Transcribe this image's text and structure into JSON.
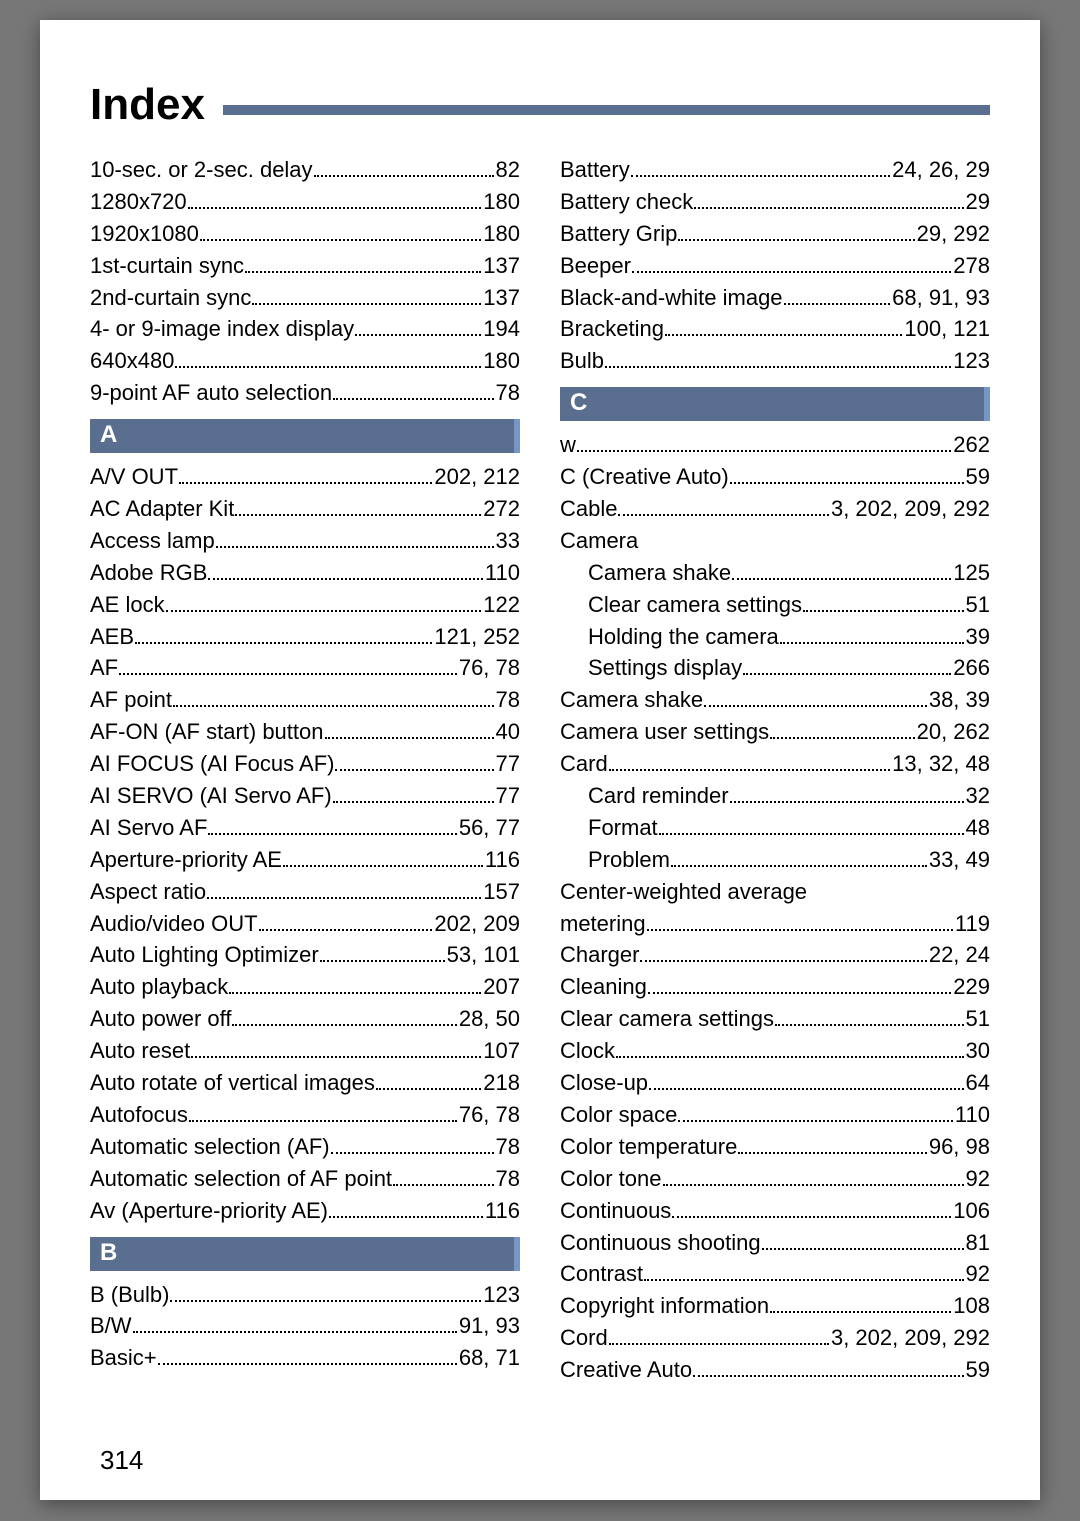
{
  "title": "Index",
  "page_number": "314",
  "colors": {
    "header_bg": "#5a6f8f",
    "header_accent": "#7896c4",
    "rule": "#5a6f8f",
    "page_bg": "#ffffff"
  },
  "left": [
    {
      "t": "entry",
      "term": "10-sec. or 2-sec. delay",
      "pages": "82"
    },
    {
      "t": "entry",
      "term": "1280x720",
      "pages": "180"
    },
    {
      "t": "entry",
      "term": "1920x1080",
      "pages": "180"
    },
    {
      "t": "entry",
      "term": "1st-curtain sync",
      "pages": "137"
    },
    {
      "t": "entry",
      "term": "2nd-curtain sync",
      "pages": "137"
    },
    {
      "t": "entry",
      "term": "4- or 9-image index display",
      "pages": "194"
    },
    {
      "t": "entry",
      "term": "640x480",
      "pages": "180"
    },
    {
      "t": "entry",
      "term": "9-point AF auto selection",
      "pages": "78"
    },
    {
      "t": "header",
      "label": "A"
    },
    {
      "t": "entry",
      "term": "A/V OUT",
      "pages": "202, 212"
    },
    {
      "t": "entry",
      "term": "AC Adapter Kit",
      "pages": "272"
    },
    {
      "t": "entry",
      "term": "Access lamp",
      "pages": "33"
    },
    {
      "t": "entry",
      "term": "Adobe RGB",
      "pages": "110"
    },
    {
      "t": "entry",
      "term": "AE lock",
      "pages": "122"
    },
    {
      "t": "entry",
      "term": "AEB",
      "pages": "121, 252"
    },
    {
      "t": "entry",
      "term": "AF",
      "pages": "76, 78"
    },
    {
      "t": "entry",
      "term": "AF point",
      "pages": "78"
    },
    {
      "t": "entry",
      "term": "AF-ON (AF start) button",
      "pages": "40"
    },
    {
      "t": "entry",
      "term": "AI FOCUS (AI Focus AF)",
      "pages": "77"
    },
    {
      "t": "entry",
      "term": "AI SERVO (AI Servo AF)",
      "pages": "77"
    },
    {
      "t": "entry",
      "term": "AI Servo AF",
      "pages": "56, 77"
    },
    {
      "t": "entry",
      "term": "Aperture-priority AE",
      "pages": "116"
    },
    {
      "t": "entry",
      "term": "Aspect ratio",
      "pages": "157"
    },
    {
      "t": "entry",
      "term": "Audio/video OUT",
      "pages": "202, 209"
    },
    {
      "t": "entry",
      "term": "Auto Lighting Optimizer",
      "pages": "53, 101"
    },
    {
      "t": "entry",
      "term": "Auto playback",
      "pages": "207"
    },
    {
      "t": "entry",
      "term": "Auto power off",
      "pages": "28, 50"
    },
    {
      "t": "entry",
      "term": "Auto reset",
      "pages": "107"
    },
    {
      "t": "entry",
      "term": "Auto rotate of vertical images",
      "pages": "218"
    },
    {
      "t": "entry",
      "term": "Autofocus",
      "pages": "76, 78"
    },
    {
      "t": "entry",
      "term": "Automatic selection (AF)",
      "pages": "78"
    },
    {
      "t": "entry",
      "term": "Automatic selection of AF point",
      "pages": "78"
    },
    {
      "t": "entry",
      "term": "Av (Aperture-priority AE)",
      "pages": "116"
    },
    {
      "t": "header",
      "label": "B"
    },
    {
      "t": "entry",
      "term": "B (Bulb)",
      "pages": "123"
    },
    {
      "t": "entry",
      "term": "B/W",
      "pages": "91, 93"
    },
    {
      "t": "entry",
      "term": "Basic+",
      "pages": "68, 71"
    }
  ],
  "right": [
    {
      "t": "entry",
      "term": "Battery",
      "pages": "24, 26, 29"
    },
    {
      "t": "entry",
      "term": "Battery check",
      "pages": "29"
    },
    {
      "t": "entry",
      "term": "Battery Grip",
      "pages": "29, 292"
    },
    {
      "t": "entry",
      "term": "Beeper",
      "pages": "278"
    },
    {
      "t": "entry",
      "term": "Black-and-white image",
      "pages": "68, 91, 93"
    },
    {
      "t": "entry",
      "term": "Bracketing",
      "pages": "100, 121"
    },
    {
      "t": "entry",
      "term": "Bulb",
      "pages": "123"
    },
    {
      "t": "header",
      "label": "C"
    },
    {
      "t": "entry",
      "term": "w",
      "pages": "262"
    },
    {
      "t": "entry",
      "term": "C   (Creative Auto)",
      "pages": "59"
    },
    {
      "t": "entry",
      "term": "Cable",
      "pages": "3, 202, 209, 292"
    },
    {
      "t": "plain",
      "term": "Camera"
    },
    {
      "t": "entry",
      "sub": true,
      "term": "Camera shake",
      "pages": "125"
    },
    {
      "t": "entry",
      "sub": true,
      "term": "Clear camera settings",
      "pages": "51"
    },
    {
      "t": "entry",
      "sub": true,
      "term": "Holding the camera",
      "pages": "39"
    },
    {
      "t": "entry",
      "sub": true,
      "term": "Settings display",
      "pages": "266"
    },
    {
      "t": "entry",
      "term": "Camera shake",
      "pages": "38, 39"
    },
    {
      "t": "entry",
      "term": "Camera user settings",
      "pages": "20, 262"
    },
    {
      "t": "entry",
      "term": "Card",
      "pages": "13, 32, 48"
    },
    {
      "t": "entry",
      "sub": true,
      "term": "Card reminder",
      "pages": "32"
    },
    {
      "t": "entry",
      "sub": true,
      "term": "Format",
      "pages": "48"
    },
    {
      "t": "entry",
      "sub": true,
      "term": "Problem",
      "pages": "33, 49"
    },
    {
      "t": "plain",
      "term": "Center-weighted average"
    },
    {
      "t": "entry",
      "term": "metering",
      "pages": "119"
    },
    {
      "t": "entry",
      "term": "Charger",
      "pages": "22, 24"
    },
    {
      "t": "entry",
      "term": "Cleaning",
      "pages": "229"
    },
    {
      "t": "entry",
      "term": "Clear camera settings",
      "pages": "51"
    },
    {
      "t": "entry",
      "term": "Clock",
      "pages": "30"
    },
    {
      "t": "entry",
      "term": "Close-up",
      "pages": "64"
    },
    {
      "t": "entry",
      "term": "Color space",
      "pages": "110"
    },
    {
      "t": "entry",
      "term": "Color temperature",
      "pages": "96, 98"
    },
    {
      "t": "entry",
      "term": "Color tone",
      "pages": "92"
    },
    {
      "t": "entry",
      "term": "Continuous",
      "pages": "106"
    },
    {
      "t": "entry",
      "term": "Continuous shooting",
      "pages": "81"
    },
    {
      "t": "entry",
      "term": "Contrast",
      "pages": "92"
    },
    {
      "t": "entry",
      "term": "Copyright information",
      "pages": "108"
    },
    {
      "t": "entry",
      "term": "Cord",
      "pages": "3, 202, 209, 292"
    },
    {
      "t": "entry",
      "term": "Creative Auto",
      "pages": "59"
    }
  ]
}
